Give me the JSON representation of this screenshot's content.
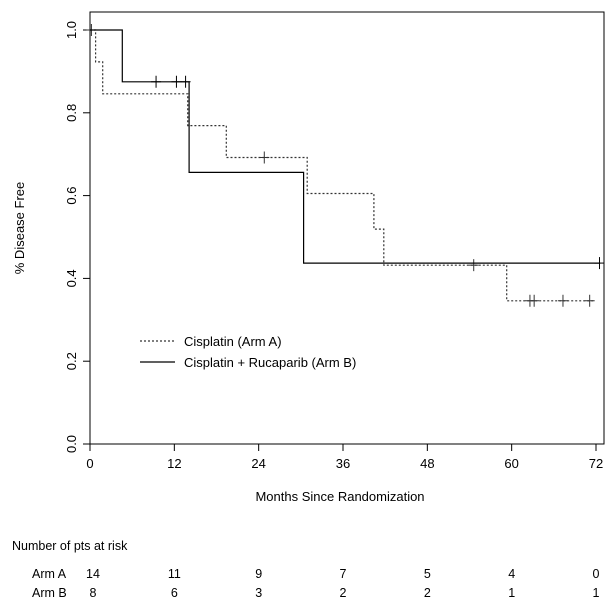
{
  "chart_data": {
    "type": "line",
    "subtype": "kaplan-meier",
    "xlabel": "Months Since Randomization",
    "ylabel": "% Disease Free",
    "xlim": [
      0,
      73
    ],
    "ylim": [
      0,
      1.0
    ],
    "x_ticks": [
      "0",
      "12",
      "24",
      "36",
      "48",
      "60",
      "72"
    ],
    "y_ticks": [
      "0.0",
      "0.2",
      "0.4",
      "0.6",
      "0.8",
      "1.0"
    ],
    "grid": false,
    "legend_position": "lower-left",
    "series": [
      {
        "name": "Cisplatin (Arm A)",
        "line_style": "dotted",
        "color": "#333333",
        "steps": [
          [
            0,
            1.0
          ],
          [
            0.8,
            1.0
          ],
          [
            0.8,
            0.923
          ],
          [
            1.8,
            0.923
          ],
          [
            1.8,
            0.846
          ],
          [
            13.9,
            0.846
          ],
          [
            13.9,
            0.769
          ],
          [
            19.4,
            0.769
          ],
          [
            19.4,
            0.692
          ],
          [
            30.9,
            0.692
          ],
          [
            30.9,
            0.605
          ],
          [
            40.4,
            0.605
          ],
          [
            40.4,
            0.519
          ],
          [
            41.8,
            0.519
          ],
          [
            41.8,
            0.432
          ],
          [
            59.3,
            0.432
          ],
          [
            59.3,
            0.346
          ],
          [
            71.6,
            0.346
          ]
        ],
        "censored": [
          [
            0.2,
            1.0
          ],
          [
            24.8,
            0.692
          ],
          [
            54.6,
            0.432
          ],
          [
            62.6,
            0.346
          ],
          [
            63.2,
            0.346
          ],
          [
            67.3,
            0.346
          ],
          [
            71.1,
            0.346
          ]
        ]
      },
      {
        "name": "Cisplatin + Rucaparib (Arm B)",
        "line_style": "solid",
        "color": "#000000",
        "steps": [
          [
            0,
            1.0
          ],
          [
            4.6,
            1.0
          ],
          [
            4.6,
            0.875
          ],
          [
            14.1,
            0.875
          ],
          [
            14.1,
            0.656
          ],
          [
            30.4,
            0.656
          ],
          [
            30.4,
            0.437
          ],
          [
            72.6,
            0.437
          ]
        ],
        "censored": [
          [
            9.4,
            0.875
          ],
          [
            12.3,
            0.875
          ],
          [
            13.6,
            0.875
          ],
          [
            72.5,
            0.437
          ]
        ]
      }
    ],
    "risk_table": {
      "title": "Number of pts at risk",
      "time_points": [
        0,
        12,
        24,
        36,
        48,
        60,
        72
      ],
      "rows": [
        {
          "label": "Arm A",
          "values": [
            "14",
            "11",
            "9",
            "7",
            "5",
            "4",
            "0"
          ]
        },
        {
          "label": "Arm B",
          "values": [
            "8",
            "6",
            "3",
            "2",
            "2",
            "1",
            "1"
          ]
        }
      ]
    }
  }
}
